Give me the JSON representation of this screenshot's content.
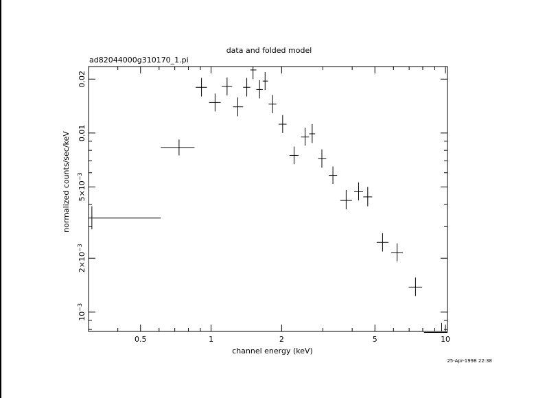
{
  "chart_data": {
    "type": "scatter",
    "title": "data and folded model",
    "subtitle": "ad82044000g310170_1.pi",
    "xlabel": "channel energy (keV)",
    "ylabel": "normalized counts/sec/keV",
    "timestamp": "25-Apr-1998 22:38",
    "x_scale": "log",
    "y_scale": "log",
    "xlim": [
      0.3,
      10.2
    ],
    "ylim": [
      0.00078,
      0.0235
    ],
    "x_ticks": [
      {
        "value": 0.5,
        "label": "0.5"
      },
      {
        "value": 1,
        "label": "1"
      },
      {
        "value": 2,
        "label": "2"
      },
      {
        "value": 5,
        "label": "5"
      },
      {
        "value": 10,
        "label": "10"
      }
    ],
    "y_ticks": [
      {
        "value": 0.001,
        "label": "10",
        "sup": "−3"
      },
      {
        "value": 0.002,
        "label": "2×10",
        "sup": "−3"
      },
      {
        "value": 0.005,
        "label": "5×10",
        "sup": "−3"
      },
      {
        "value": 0.01,
        "label": "0.01",
        "sup": ""
      },
      {
        "value": 0.02,
        "label": "0.02",
        "sup": ""
      }
    ],
    "grid": false,
    "points": [
      {
        "x": 0.31,
        "xlo": 0.3,
        "xhi": 0.61,
        "y": 0.00335,
        "ylo": 0.0029,
        "yhi": 0.0039
      },
      {
        "x": 0.73,
        "xlo": 0.61,
        "xhi": 0.85,
        "y": 0.0083,
        "ylo": 0.0075,
        "yhi": 0.0092
      },
      {
        "x": 0.91,
        "xlo": 0.86,
        "xhi": 0.96,
        "y": 0.018,
        "ylo": 0.016,
        "yhi": 0.0203
      },
      {
        "x": 1.04,
        "xlo": 0.98,
        "xhi": 1.1,
        "y": 0.0148,
        "ylo": 0.0132,
        "yhi": 0.0166
      },
      {
        "x": 1.17,
        "xlo": 1.11,
        "xhi": 1.23,
        "y": 0.0182,
        "ylo": 0.0162,
        "yhi": 0.0204
      },
      {
        "x": 1.3,
        "xlo": 1.24,
        "xhi": 1.37,
        "y": 0.014,
        "ylo": 0.0124,
        "yhi": 0.0158
      },
      {
        "x": 1.42,
        "xlo": 1.37,
        "xhi": 1.47,
        "y": 0.018,
        "ylo": 0.016,
        "yhi": 0.0203
      },
      {
        "x": 1.51,
        "xlo": 1.47,
        "xhi": 1.56,
        "y": 0.0225,
        "ylo": 0.02,
        "yhi": 0.0235
      },
      {
        "x": 1.61,
        "xlo": 1.56,
        "xhi": 1.66,
        "y": 0.0175,
        "ylo": 0.0156,
        "yhi": 0.0197
      },
      {
        "x": 1.7,
        "xlo": 1.66,
        "xhi": 1.75,
        "y": 0.0195,
        "ylo": 0.0174,
        "yhi": 0.0219
      },
      {
        "x": 1.83,
        "xlo": 1.76,
        "xhi": 1.9,
        "y": 0.0145,
        "ylo": 0.0129,
        "yhi": 0.0163
      },
      {
        "x": 2.02,
        "xlo": 1.94,
        "xhi": 2.1,
        "y": 0.0112,
        "ylo": 0.01,
        "yhi": 0.0126
      },
      {
        "x": 2.26,
        "xlo": 2.16,
        "xhi": 2.36,
        "y": 0.0075,
        "ylo": 0.0067,
        "yhi": 0.0084
      },
      {
        "x": 2.52,
        "xlo": 2.42,
        "xhi": 2.62,
        "y": 0.0095,
        "ylo": 0.0085,
        "yhi": 0.0107
      },
      {
        "x": 2.7,
        "xlo": 2.62,
        "xhi": 2.78,
        "y": 0.0099,
        "ylo": 0.0088,
        "yhi": 0.0112
      },
      {
        "x": 2.97,
        "xlo": 2.86,
        "xhi": 3.1,
        "y": 0.0072,
        "ylo": 0.0064,
        "yhi": 0.0081
      },
      {
        "x": 3.31,
        "xlo": 3.18,
        "xhi": 3.45,
        "y": 0.0058,
        "ylo": 0.0052,
        "yhi": 0.0065
      },
      {
        "x": 3.77,
        "xlo": 3.56,
        "xhi": 3.99,
        "y": 0.0042,
        "ylo": 0.00375,
        "yhi": 0.0048
      },
      {
        "x": 4.26,
        "xlo": 4.08,
        "xhi": 4.45,
        "y": 0.0047,
        "ylo": 0.0042,
        "yhi": 0.0053
      },
      {
        "x": 4.66,
        "xlo": 4.46,
        "xhi": 4.87,
        "y": 0.0044,
        "ylo": 0.0039,
        "yhi": 0.005
      },
      {
        "x": 5.39,
        "xlo": 5.09,
        "xhi": 5.71,
        "y": 0.00245,
        "ylo": 0.00218,
        "yhi": 0.00276
      },
      {
        "x": 6.22,
        "xlo": 5.87,
        "xhi": 6.58,
        "y": 0.00215,
        "ylo": 0.00192,
        "yhi": 0.00242
      },
      {
        "x": 7.45,
        "xlo": 6.97,
        "xhi": 7.95,
        "y": 0.00138,
        "ylo": 0.00123,
        "yhi": 0.00156
      },
      {
        "x": 9.63,
        "xlo": 8.1,
        "xhi": 10.2,
        "y": 0.00077,
        "ylo": 0.00067,
        "yhi": 0.00087
      }
    ]
  }
}
